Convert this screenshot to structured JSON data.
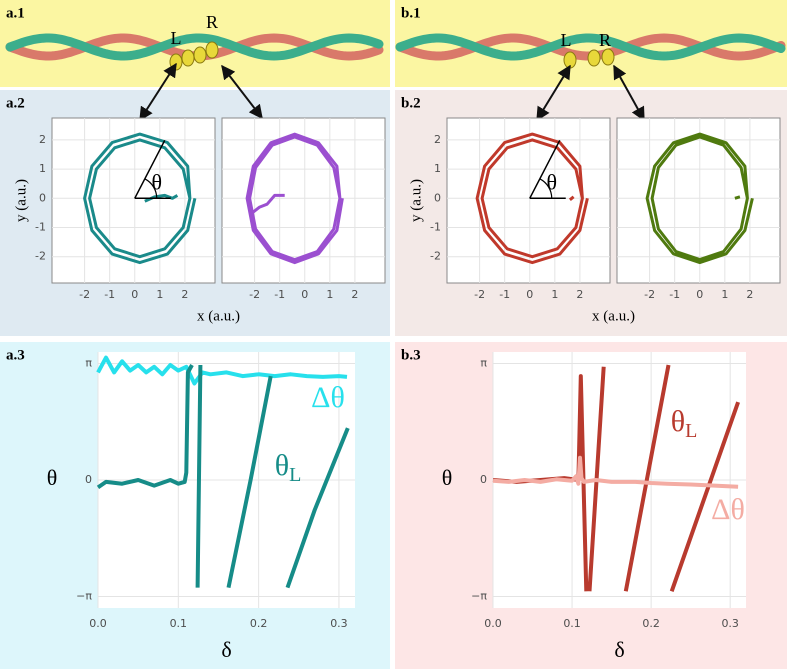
{
  "panels": {
    "a1": "a.1",
    "a2": "a.2",
    "a3": "a.3",
    "b1": "b.1",
    "b2": "b.2",
    "b3": "b.3"
  },
  "loop_labels": {
    "left": "L",
    "right": "R"
  },
  "chart_data": [
    {
      "type": "line",
      "xlabel": "x (a.u.)",
      "ylabel": "y (a.u.)",
      "angle_label": "θ",
      "xlim": [
        -3.3,
        3.2
      ],
      "ylim": [
        -2.9,
        2.75
      ],
      "xticks": [
        -2,
        -1,
        0,
        1,
        2
      ],
      "yticks": [
        -2,
        -1,
        0,
        1,
        2
      ],
      "grid": true,
      "x": [
        2.2,
        1.93,
        1.2,
        0.2,
        -0.8,
        -1.53,
        -1.8,
        -1.53,
        -0.8,
        0.2,
        1.2,
        1.93,
        2.2,
        2.11,
        1.3,
        0.2,
        -0.9,
        -1.71,
        -2.0,
        -1.71,
        -0.9,
        0.2,
        1.3,
        2.11,
        2.4,
        null,
        1.7,
        1.5,
        1.2,
        0.8,
        0.4
      ],
      "series": [
        {
          "color": "#1a8a8a",
          "values": [
            0,
            1.0,
            1.73,
            2.0,
            1.73,
            1.0,
            0,
            -1.0,
            -1.73,
            -2.0,
            -1.73,
            -1.0,
            0,
            1.1,
            1.91,
            2.2,
            1.91,
            1.1,
            0,
            -1.1,
            -1.91,
            -2.2,
            -1.91,
            -1.1,
            0,
            null,
            0.1,
            0.0,
            0.1,
            0.05,
            -0.1
          ]
        }
      ]
    },
    {
      "type": "line",
      "xlim": [
        -3.3,
        3.2
      ],
      "ylim": [
        -2.9,
        2.75
      ],
      "xticks": [
        -2,
        -1,
        0,
        1,
        2
      ],
      "yticks": [
        -2,
        -1,
        0,
        1,
        2
      ],
      "grid": true,
      "x": [
        1.4,
        1.16,
        0.5,
        -0.4,
        -1.3,
        -1.96,
        -2.2,
        -1.96,
        -1.3,
        -0.4,
        0.5,
        1.16,
        1.4,
        1.28,
        0.55,
        -0.4,
        -1.35,
        -2.05,
        -2.3,
        -2.05,
        -1.35,
        -0.4,
        0.55,
        1.28,
        1.5,
        null,
        -2.1,
        -1.8,
        -1.5,
        -1.2,
        -0.8
      ],
      "series": [
        {
          "color": "#9b4fd0",
          "values": [
            0,
            1.05,
            1.82,
            2.1,
            1.82,
            1.05,
            0,
            -1.05,
            -1.82,
            -2.1,
            -1.82,
            -1.05,
            0,
            1.1,
            1.9,
            2.2,
            1.9,
            1.1,
            0,
            -1.1,
            -1.9,
            -2.2,
            -1.9,
            -1.1,
            0,
            null,
            -0.5,
            -0.3,
            -0.2,
            0.1,
            0.1
          ]
        }
      ]
    },
    {
      "type": "line",
      "xlabel": "x (a.u.)",
      "ylabel": "y (a.u.)",
      "angle_label": "θ",
      "xlim": [
        -3.3,
        3.2
      ],
      "ylim": [
        -2.9,
        2.75
      ],
      "xticks": [
        -2,
        -1,
        0,
        1,
        2
      ],
      "yticks": [
        -2,
        -1,
        0,
        1,
        2
      ],
      "grid": true,
      "x": [
        2.1,
        1.84,
        1.1,
        0.1,
        -0.9,
        -1.63,
        -1.9,
        -1.63,
        -0.9,
        0.1,
        1.1,
        1.84,
        2.1,
        2.0,
        1.2,
        0.1,
        -1.0,
        -1.8,
        -2.1,
        -1.8,
        -1.0,
        0.1,
        1.2,
        2.0,
        2.3,
        null,
        1.6,
        1.75
      ],
      "series": [
        {
          "color": "#c0392b",
          "values": [
            0,
            1.0,
            1.73,
            2.0,
            1.73,
            1.0,
            0,
            -1.0,
            -1.73,
            -2.0,
            -1.73,
            -1.0,
            0,
            1.1,
            1.91,
            2.2,
            1.91,
            1.1,
            0,
            -1.1,
            -1.91,
            -2.2,
            -1.91,
            -1.1,
            0,
            null,
            -0.05,
            0.05
          ]
        }
      ]
    },
    {
      "type": "line",
      "xlim": [
        -3.3,
        3.2
      ],
      "ylim": [
        -2.9,
        2.75
      ],
      "xticks": [
        -2,
        -1,
        0,
        1,
        2
      ],
      "yticks": [
        -2,
        -1,
        0,
        1,
        2
      ],
      "grid": true,
      "x": [
        1.9,
        1.65,
        0.95,
        0,
        -0.95,
        -1.65,
        -1.9,
        -1.65,
        -0.95,
        0,
        0.95,
        1.65,
        1.9,
        1.8,
        1.05,
        0,
        -1.05,
        -1.8,
        -2.1,
        -1.8,
        -1.05,
        0,
        1.05,
        1.8,
        2.1,
        null,
        1.4,
        1.6
      ],
      "series": [
        {
          "color": "#4f7a0f",
          "values": [
            0,
            1.05,
            1.82,
            2.1,
            1.82,
            1.05,
            0,
            -1.05,
            -1.82,
            -2.1,
            -1.82,
            -1.05,
            0,
            1.1,
            1.9,
            2.2,
            1.9,
            1.1,
            0,
            -1.1,
            -1.9,
            -2.2,
            -1.9,
            -1.1,
            0,
            null,
            0.0,
            0.05
          ]
        }
      ]
    },
    {
      "type": "line",
      "xlabel": "δ",
      "ylabel": "θ",
      "xlim": [
        0,
        0.32
      ],
      "ylim": [
        -3.45,
        3.45
      ],
      "xticks": [
        {
          "value": 0,
          "label": "0.0"
        },
        {
          "value": 0.1,
          "label": "0.1"
        },
        {
          "value": 0.2,
          "label": "0.2"
        },
        {
          "value": 0.3,
          "label": "0.3"
        }
      ],
      "yticks": [
        {
          "value": -3.1416,
          "label": "−π"
        },
        0,
        {
          "value": 3.1416,
          "label": "π"
        }
      ],
      "grid": true,
      "series": [
        {
          "color": "#27e0ec",
          "x": [
            0,
            0.01,
            0.02,
            0.03,
            0.04,
            0.05,
            0.06,
            0.07,
            0.08,
            0.09,
            0.1,
            0.11,
            0.12,
            0.13,
            0.14,
            0.16,
            0.18,
            0.2,
            0.22,
            0.24,
            0.26,
            0.28,
            0.3,
            0.31
          ],
          "values": [
            2.9,
            3.3,
            2.9,
            3.2,
            2.95,
            3.1,
            2.9,
            3.05,
            2.85,
            3.1,
            2.95,
            3.05,
            2.6,
            2.9,
            2.85,
            2.9,
            2.8,
            2.85,
            2.8,
            2.85,
            2.8,
            2.78,
            2.8,
            2.78
          ]
        },
        {
          "color": "#168c88",
          "x": [
            0,
            0.01,
            0.03,
            0.05,
            0.07,
            0.09,
            0.1,
            0.108,
            0.11,
            0.112,
            0.117,
            null,
            0.124,
            0.1275,
            null,
            0.1625,
            0.19,
            0.215,
            null,
            0.236,
            0.27,
            0.311
          ],
          "values": [
            -0.2,
            -0.05,
            -0.1,
            0,
            -0.15,
            0,
            -0.1,
            -0.05,
            0.2,
            2.9,
            3.1,
            null,
            -2.9,
            3.1,
            null,
            -2.9,
            0,
            2.8,
            null,
            -2.9,
            -0.8,
            1.4
          ]
        }
      ],
      "annotations": [
        {
          "text": "Δθ",
          "color": "#27e0ec"
        },
        {
          "text": "θ",
          "subscript": "L",
          "color": "#168c88"
        }
      ]
    },
    {
      "type": "line",
      "xlabel": "δ",
      "ylabel": "θ",
      "xlim": [
        0,
        0.32
      ],
      "ylim": [
        -3.45,
        3.45
      ],
      "xticks": [
        {
          "value": 0,
          "label": "0.0"
        },
        {
          "value": 0.1,
          "label": "0.1"
        },
        {
          "value": 0.2,
          "label": "0.2"
        },
        {
          "value": 0.3,
          "label": "0.3"
        }
      ],
      "yticks": [
        {
          "value": -3.1416,
          "label": "−π"
        },
        0,
        {
          "value": 3.1416,
          "label": "π"
        }
      ],
      "grid": true,
      "series": [
        {
          "color": "#b83a2e",
          "x": [
            0,
            0.03,
            0.06,
            0.09,
            0.108,
            0.111,
            0.118,
            null,
            0.122,
            0.14,
            null,
            0.168,
            0.222,
            null,
            0.226,
            0.31
          ],
          "values": [
            0,
            -0.05,
            0,
            0.05,
            0,
            2.8,
            -3.0,
            null,
            -3.0,
            3.05,
            null,
            -3.0,
            3.1,
            null,
            -3.0,
            2.1
          ]
        },
        {
          "color": "#f4aca3",
          "x": [
            0,
            0.02,
            0.04,
            0.06,
            0.08,
            0.1,
            0.105,
            0.108,
            0.11,
            0.112,
            0.115,
            0.13,
            0.15,
            0.18,
            0.2,
            0.22,
            0.25,
            0.28,
            0.31
          ],
          "values": [
            -0.02,
            -0.05,
            0,
            -0.05,
            0.02,
            -0.02,
            0.1,
            -0.1,
            0.6,
            0.05,
            -0.05,
            0,
            -0.05,
            -0.05,
            -0.08,
            -0.1,
            -0.12,
            -0.15,
            -0.18
          ]
        }
      ],
      "annotations": [
        {
          "text": "θ",
          "subscript": "L",
          "color": "#b83a2e"
        },
        {
          "text": "Δθ",
          "color": "#f4aca3"
        }
      ]
    }
  ]
}
